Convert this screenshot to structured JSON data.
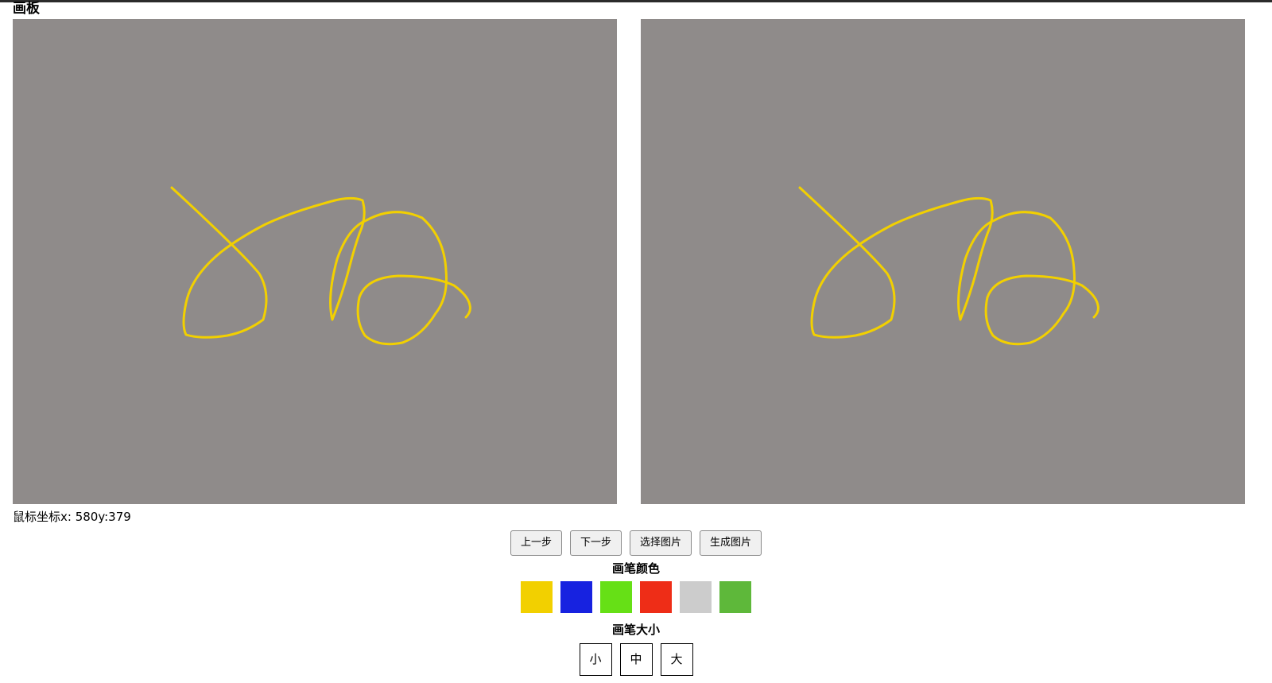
{
  "page": {
    "title": "画板"
  },
  "canvas": {
    "background": "#8f8b8a",
    "stroke_color": "#f2d000"
  },
  "status": {
    "coords_label": "鼠标坐标x: 580y:379"
  },
  "toolbar": {
    "undo_label": "上一步",
    "redo_label": "下一步",
    "select_image_label": "选择图片",
    "generate_image_label": "生成图片"
  },
  "pen_color": {
    "label": "画笔颜色",
    "colors": [
      "#f2d000",
      "#1722e0",
      "#66e016",
      "#ee2d17",
      "#cccccc",
      "#5eb83a"
    ]
  },
  "pen_size": {
    "label": "画笔大小",
    "options": [
      "小",
      "中",
      "大"
    ]
  }
}
